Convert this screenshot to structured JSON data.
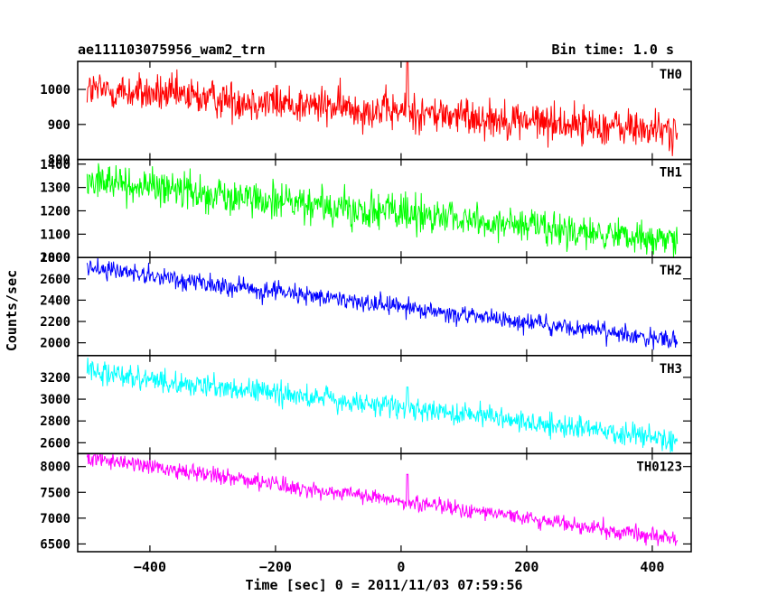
{
  "chart_data": {
    "type": "line",
    "title": "ae111103075956_wam2_trn",
    "subtitle": "Bin time: 1.0 s",
    "xlabel": "Time [sec] 0 = 2011/11/03 07:59:56",
    "ylabel": "Counts/sec",
    "xlim": [
      -515,
      462
    ],
    "x_ticks": [
      -400,
      -200,
      0,
      200,
      400
    ],
    "x_tick_labels": [
      "−400",
      "−200",
      "0",
      "200",
      "400"
    ],
    "x_range": [
      -500,
      440
    ],
    "panels": [
      {
        "name": "TH0",
        "color": "#ff0000",
        "ylim": [
          800,
          1080
        ],
        "y_ticks": [
          800,
          900,
          1000
        ],
        "y_tick_labels": [
          "800",
          "900",
          "1000"
        ],
        "trend": [
          [
            -500,
            1000
          ],
          [
            440,
            880
          ]
        ],
        "noise_sd": 28,
        "spikes": [
          [
            10,
            1080
          ]
        ]
      },
      {
        "name": "TH1",
        "color": "#00ff00",
        "ylim": [
          1000,
          1420
        ],
        "y_ticks": [
          1000,
          1100,
          1200,
          1300,
          1400
        ],
        "y_tick_labels": [
          "1000",
          "1100",
          "1200",
          "1300",
          "1400"
        ],
        "trend": [
          [
            -500,
            1330
          ],
          [
            440,
            1065
          ]
        ],
        "noise_sd": 38,
        "spikes": []
      },
      {
        "name": "TH2",
        "color": "#0000ff",
        "ylim": [
          1880,
          2800
        ],
        "y_ticks": [
          2000,
          2200,
          2400,
          2600,
          2800
        ],
        "y_tick_labels": [
          "2000",
          "2200",
          "2400",
          "2600",
          "2800"
        ],
        "trend": [
          [
            -500,
            2700
          ],
          [
            440,
            2020
          ]
        ],
        "noise_sd": 45,
        "spikes": []
      },
      {
        "name": "TH3",
        "color": "#00ffff",
        "ylim": [
          2500,
          3400
        ],
        "y_ticks": [
          2600,
          2800,
          3000,
          3200
        ],
        "y_tick_labels": [
          "2600",
          "2800",
          "3000",
          "3200"
        ],
        "trend": [
          [
            -500,
            3250
          ],
          [
            440,
            2630
          ]
        ],
        "noise_sd": 55,
        "spikes": [
          [
            10,
            3110
          ]
        ]
      },
      {
        "name": "TH0123",
        "color": "#ff00ff",
        "ylim": [
          6350,
          8250
        ],
        "y_ticks": [
          6500,
          7000,
          7500,
          8000
        ],
        "y_tick_labels": [
          "6500",
          "7000",
          "7500",
          "8000"
        ],
        "trend": [
          [
            -500,
            8170
          ],
          [
            440,
            6600
          ]
        ],
        "noise_sd": 80,
        "spikes": [
          [
            10,
            7850
          ]
        ]
      }
    ]
  }
}
